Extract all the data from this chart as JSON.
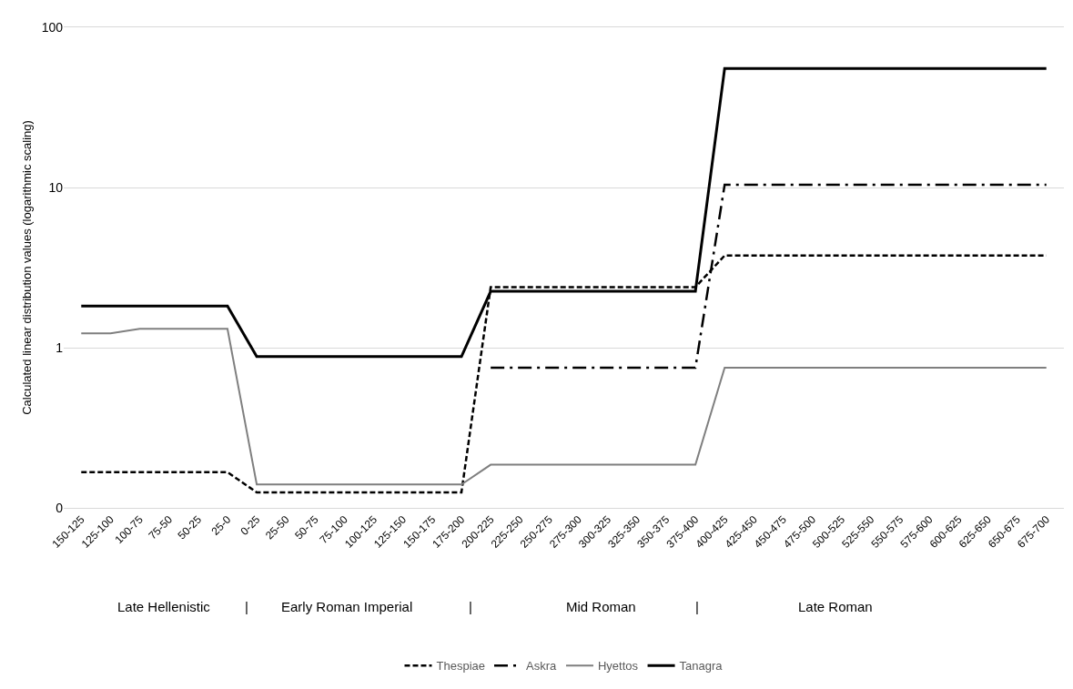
{
  "chart_data": {
    "type": "line",
    "ylabel": "Calculated linear distribution values (logarithmic scaling)",
    "categories": [
      "150-125",
      "125-100",
      "100-75",
      "75-50",
      "50-25",
      "25-0",
      "0-25",
      "25-50",
      "50-75",
      "75-100",
      "100-125",
      "125-150",
      "150-175",
      "175-200",
      "200-225",
      "225-250",
      "250-275",
      "275-300",
      "300-325",
      "325-350",
      "350-375",
      "375-400",
      "400-425",
      "425-450",
      "450-475",
      "475-500",
      "500-525",
      "525-550",
      "550-575",
      "575-600",
      "600-625",
      "625-650",
      "650-675",
      "675-700"
    ],
    "series": [
      {
        "name": "Thespiae",
        "color": "#000000",
        "line_style": "dashed",
        "values": [
          0.167,
          0.167,
          0.167,
          0.167,
          0.167,
          0.167,
          0.125,
          0.125,
          0.125,
          0.125,
          0.125,
          0.125,
          0.125,
          0.125,
          2.39,
          2.39,
          2.39,
          2.39,
          2.39,
          2.39,
          2.39,
          2.39,
          3.76,
          3.76,
          3.76,
          3.76,
          3.76,
          3.76,
          3.76,
          3.76,
          3.76,
          3.76,
          3.76,
          3.76
        ]
      },
      {
        "name": "Askra",
        "color": "#000000",
        "line_style": "dashdot",
        "values": [
          null,
          null,
          null,
          null,
          null,
          null,
          null,
          null,
          null,
          null,
          null,
          null,
          null,
          null,
          0.75,
          0.75,
          0.75,
          0.75,
          0.75,
          0.75,
          0.75,
          0.75,
          10.4,
          10.4,
          10.4,
          10.4,
          10.4,
          10.4,
          10.4,
          10.4,
          10.4,
          10.4,
          10.4,
          10.4
        ]
      },
      {
        "name": "Hyettos",
        "color": "#7f7f7f",
        "line_style": "solid",
        "values": [
          1.23,
          1.23,
          1.31,
          1.31,
          1.31,
          1.31,
          0.14,
          0.14,
          0.14,
          0.14,
          0.14,
          0.14,
          0.14,
          0.14,
          0.186,
          0.186,
          0.186,
          0.186,
          0.186,
          0.186,
          0.186,
          0.186,
          0.75,
          0.75,
          0.75,
          0.75,
          0.75,
          0.75,
          0.75,
          0.75,
          0.75,
          0.75,
          0.75,
          0.75
        ]
      },
      {
        "name": "Tanagra",
        "color": "#000000",
        "line_style": "solid",
        "values": [
          1.82,
          1.82,
          1.82,
          1.82,
          1.82,
          1.82,
          0.88,
          0.88,
          0.88,
          0.88,
          0.88,
          0.88,
          0.88,
          0.88,
          2.25,
          2.25,
          2.25,
          2.25,
          2.25,
          2.25,
          2.25,
          2.25,
          55.4,
          55.4,
          55.4,
          55.4,
          55.4,
          55.4,
          55.4,
          55.4,
          55.4,
          55.4,
          55.4,
          55.4
        ]
      }
    ],
    "log": "y",
    "ylim": [
      0.1,
      100
    ],
    "yticks": [
      {
        "value": 0.1,
        "label": "0"
      },
      1,
      10,
      100
    ],
    "grid": "y",
    "legend": "bottom",
    "marker": "none",
    "annotations": [
      "Late Hellenistic",
      "|",
      "Early Roman Imperial",
      "|",
      "Mid Roman",
      "|",
      "Late Roman"
    ]
  }
}
